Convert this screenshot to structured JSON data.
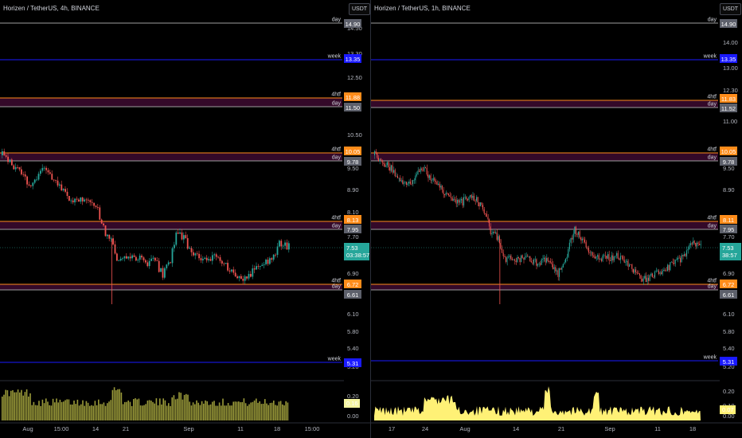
{
  "colors": {
    "background": "#000000",
    "candle_up": "#26a69a",
    "candle_down": "#ef5350",
    "level_day": "#9e9e9e",
    "level_week": "#1a1aff",
    "level_4htf": "#ff8c1a",
    "zone_fill": "#3a0a2e",
    "volume_left": "#9a9a3a",
    "volume_right": "#fff176",
    "current_price": "#26a69a"
  },
  "panes": [
    {
      "id": "left",
      "title": "Horizen / TetherUS, 4h, BINANCE",
      "unit": "USDT",
      "price_ticks": [
        "14.50",
        "13.30",
        "12.50",
        "11.70",
        "10.50",
        "9.50",
        "8.90",
        "8.10",
        "7.70",
        "6.90",
        "6.10",
        "5.80",
        "5.40",
        "5.20"
      ],
      "levels": [
        {
          "name": "day",
          "value": "14.90",
          "type": "day"
        },
        {
          "name": "week",
          "value": "13.35",
          "type": "week"
        },
        {
          "name": "4htf",
          "value": "11.88",
          "type": "4htf"
        },
        {
          "name": "day",
          "value": "11.50",
          "type": "day"
        },
        {
          "name": "4htf",
          "value": "10.05",
          "type": "4htf"
        },
        {
          "name": "day",
          "value": "9.78",
          "type": "day"
        },
        {
          "name": "4htf",
          "value": "8.13",
          "type": "4htf"
        },
        {
          "name": "day",
          "value": "7.95",
          "type": "day"
        },
        {
          "name": "4htf",
          "value": "6.72",
          "type": "4htf"
        },
        {
          "name": "day",
          "value": "6.61",
          "type": "day"
        },
        {
          "name": "week",
          "value": "5.31",
          "type": "week"
        }
      ],
      "current_price": "7.53",
      "countdown": "03:38:57",
      "volume_ticks": [
        "0.20",
        "0.00"
      ],
      "volume_value": "0.16",
      "date_labels": [
        "Aug",
        "15:00",
        "14",
        "21",
        "Sep",
        "11",
        "18",
        "15:00"
      ]
    },
    {
      "id": "right",
      "title": "Horizen / TetherUS, 1h, BINANCE",
      "unit": "USDT",
      "price_ticks": [
        "14.00",
        "13.00",
        "12.30",
        "11.00",
        "9.50",
        "8.90",
        "7.70",
        "6.90",
        "6.10",
        "5.80",
        "5.40",
        "5.20"
      ],
      "levels": [
        {
          "name": "day",
          "value": "14.90",
          "type": "day"
        },
        {
          "name": "week",
          "value": "13.35",
          "type": "week"
        },
        {
          "name": "4htf",
          "value": "11.83",
          "type": "4htf"
        },
        {
          "name": "day",
          "value": "11.52",
          "type": "day"
        },
        {
          "name": "4htf",
          "value": "10.05",
          "type": "4htf"
        },
        {
          "name": "day",
          "value": "9.78",
          "type": "day"
        },
        {
          "name": "4htf",
          "value": "8.11",
          "type": "4htf"
        },
        {
          "name": "day",
          "value": "7.95",
          "type": "day"
        },
        {
          "name": "4htf",
          "value": "6.72",
          "type": "4htf"
        },
        {
          "name": "day",
          "value": "6.61",
          "type": "day"
        },
        {
          "name": "week",
          "value": "5.31",
          "type": "week"
        }
      ],
      "current_price": "7.53",
      "countdown": "38:57",
      "volume_ticks": [
        "0.20",
        "0.10",
        "0.00"
      ],
      "volume_value": "0.07",
      "date_labels": [
        "17",
        "24",
        "Aug",
        "14",
        "21",
        "Sep",
        "11",
        "18"
      ]
    }
  ]
}
